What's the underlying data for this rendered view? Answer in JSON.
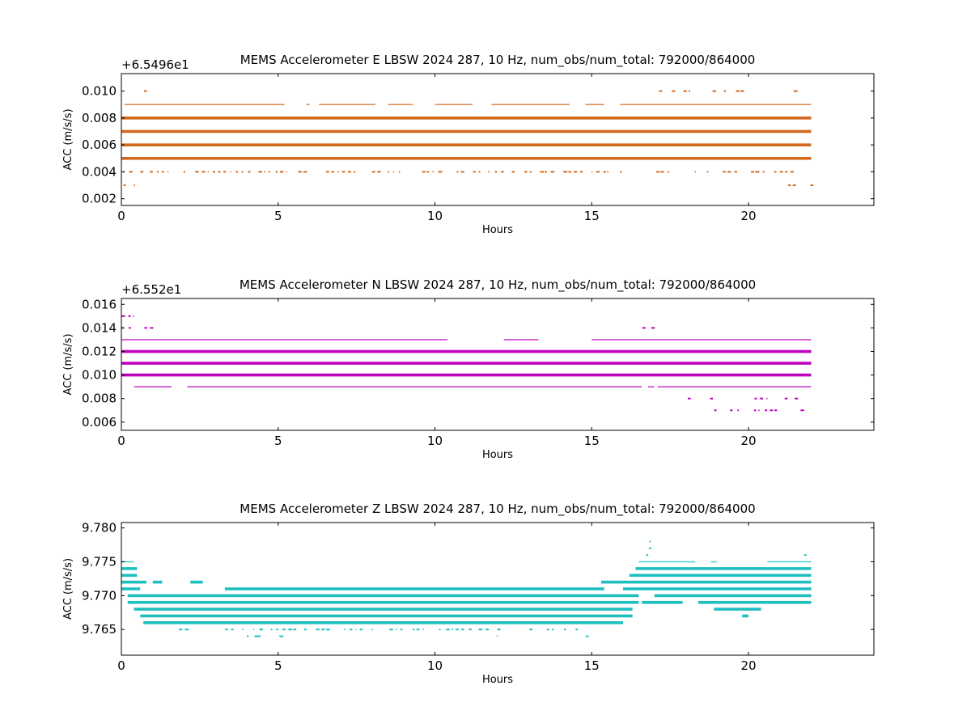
{
  "chart_data": [
    {
      "type": "scatter",
      "title": "MEMS Accelerometer E LBSW 2024 287, 10 Hz, num_obs/num_total: 792000/864000",
      "xlabel": "Hours",
      "ylabel": "ACC (m/s/s)",
      "offset_text": "+6.5496e1",
      "color": "#d2691e",
      "xlim": [
        0,
        24
      ],
      "ylim": [
        0.0015,
        0.0113
      ],
      "xticks": [
        0,
        5,
        10,
        15,
        20
      ],
      "xtick_labels": [
        "0",
        "5",
        "10",
        "15",
        "20"
      ],
      "yticks": [
        0.002,
        0.004,
        0.006,
        0.008,
        0.01
      ],
      "ytick_labels": [
        "0.002",
        "0.004",
        "0.006",
        "0.008",
        "0.010"
      ],
      "series": [
        {
          "y": 0.01,
          "segments": [
            [
              0.7,
              0.8
            ],
            [
              17.1,
              17.7
            ],
            [
              17.9,
              18.2
            ],
            [
              18.6,
              19.9
            ],
            [
              20.5,
              21.1
            ],
            [
              21.4,
              21.6
            ]
          ],
          "density": "sparse"
        },
        {
          "y": 0.009,
          "segments": [
            [
              0.1,
              5.2
            ],
            [
              5.9,
              6.0
            ],
            [
              6.3,
              8.1
            ],
            [
              8.5,
              9.3
            ],
            [
              10.0,
              11.2
            ],
            [
              11.8,
              14.3
            ],
            [
              14.8,
              15.4
            ],
            [
              15.9,
              22.0
            ]
          ],
          "density": "sparse-to-dense"
        },
        {
          "y": 0.008,
          "segments": [
            [
              0.0,
              22.0
            ]
          ],
          "density": "dense"
        },
        {
          "y": 0.007,
          "segments": [
            [
              0.0,
              22.0
            ]
          ],
          "density": "dense"
        },
        {
          "y": 0.006,
          "segments": [
            [
              0.0,
              22.0
            ]
          ],
          "density": "dense"
        },
        {
          "y": 0.005,
          "segments": [
            [
              0.0,
              22.0
            ]
          ],
          "density": "dense"
        },
        {
          "y": 0.004,
          "segments": [
            [
              0.0,
              16.2
            ],
            [
              17.0,
              22.0
            ]
          ],
          "density": "sparse"
        },
        {
          "y": 0.003,
          "segments": [
            [
              0.0,
              0.1
            ],
            [
              0.4,
              0.5
            ],
            [
              21.2,
              21.5
            ],
            [
              21.9,
              22.0
            ]
          ],
          "density": "sparse"
        }
      ]
    },
    {
      "type": "scatter",
      "title": "MEMS Accelerometer N LBSW 2024 287, 10 Hz, num_obs/num_total: 792000/864000",
      "xlabel": "Hours",
      "ylabel": "ACC (m/s/s)",
      "offset_text": "+6.552e1",
      "color": "#bf00bf",
      "xlim": [
        0,
        24
      ],
      "ylim": [
        0.0053,
        0.0165
      ],
      "xticks": [
        0,
        5,
        10,
        15,
        20
      ],
      "xtick_labels": [
        "0",
        "5",
        "10",
        "15",
        "20"
      ],
      "yticks": [
        0.006,
        0.008,
        0.01,
        0.012,
        0.014,
        0.016
      ],
      "ytick_labels": [
        "0.006",
        "0.008",
        "0.010",
        "0.012",
        "0.014",
        "0.016"
      ],
      "series": [
        {
          "y": 0.015,
          "segments": [
            [
              0.0,
              0.5
            ]
          ],
          "density": "sparse"
        },
        {
          "y": 0.014,
          "segments": [
            [
              0.0,
              0.6
            ],
            [
              0.7,
              1.0
            ],
            [
              16.6,
              16.8
            ],
            [
              16.9,
              17.0
            ]
          ],
          "density": "sparse"
        },
        {
          "y": 0.013,
          "segments": [
            [
              0.0,
              10.4
            ],
            [
              12.2,
              13.3
            ],
            [
              15.0,
              22.0
            ]
          ],
          "density": "sparse-to-dense"
        },
        {
          "y": 0.012,
          "segments": [
            [
              0.0,
              22.0
            ]
          ],
          "density": "dense"
        },
        {
          "y": 0.011,
          "segments": [
            [
              0.0,
              22.0
            ]
          ],
          "density": "dense"
        },
        {
          "y": 0.01,
          "segments": [
            [
              0.0,
              22.0
            ]
          ],
          "density": "dense"
        },
        {
          "y": 0.009,
          "segments": [
            [
              0.4,
              1.6
            ],
            [
              2.1,
              16.6
            ],
            [
              16.8,
              17.0
            ],
            [
              17.1,
              22.0
            ]
          ],
          "density": "sparse-to-dense"
        },
        {
          "y": 0.008,
          "segments": [
            [
              18.0,
              22.0
            ]
          ],
          "density": "sparse"
        },
        {
          "y": 0.007,
          "segments": [
            [
              18.7,
              21.0
            ],
            [
              21.6,
              21.7
            ]
          ],
          "density": "sparse"
        }
      ]
    },
    {
      "type": "scatter",
      "title": "MEMS Accelerometer Z LBSW 2024 287, 10 Hz, num_obs/num_total: 792000/864000",
      "xlabel": "Hours",
      "ylabel": "ACC (m/s/s)",
      "offset_text": "",
      "color": "#1fbfbf",
      "xlim": [
        0,
        24
      ],
      "ylim": [
        9.7612,
        9.7808
      ],
      "xticks": [
        0,
        5,
        10,
        15,
        20
      ],
      "xtick_labels": [
        "0",
        "5",
        "10",
        "15",
        "20"
      ],
      "yticks": [
        9.765,
        9.77,
        9.775,
        9.78
      ],
      "ytick_labels": [
        "9.765",
        "9.770",
        "9.775",
        "9.780"
      ],
      "series": [
        {
          "y": 9.778,
          "segments": [
            [
              16.8,
              16.9
            ]
          ],
          "density": "sparse"
        },
        {
          "y": 9.777,
          "segments": [
            [
              16.8,
              16.9
            ]
          ],
          "density": "sparse"
        },
        {
          "y": 9.776,
          "segments": [
            [
              16.7,
              16.9
            ],
            [
              21.7,
              21.8
            ]
          ],
          "density": "sparse"
        },
        {
          "y": 9.775,
          "segments": [
            [
              0.0,
              0.4
            ],
            [
              16.5,
              18.3
            ],
            [
              18.8,
              19.0
            ],
            [
              20.6,
              22.0
            ]
          ],
          "density": "sparse-to-dense"
        },
        {
          "y": 9.774,
          "segments": [
            [
              0.0,
              0.5
            ],
            [
              16.4,
              22.0
            ]
          ],
          "density": "dense"
        },
        {
          "y": 9.773,
          "segments": [
            [
              0.0,
              0.5
            ],
            [
              16.2,
              22.0
            ]
          ],
          "density": "dense"
        },
        {
          "y": 9.772,
          "segments": [
            [
              0.0,
              0.8
            ],
            [
              1.0,
              1.3
            ],
            [
              2.2,
              2.6
            ],
            [
              15.3,
              22.0
            ]
          ],
          "density": "dense"
        },
        {
          "y": 9.771,
          "segments": [
            [
              0.0,
              0.6
            ],
            [
              3.3,
              15.4
            ],
            [
              16.0,
              22.0
            ]
          ],
          "density": "dense"
        },
        {
          "y": 9.77,
          "segments": [
            [
              0.2,
              16.5
            ],
            [
              17.0,
              22.0
            ]
          ],
          "density": "dense"
        },
        {
          "y": 9.769,
          "segments": [
            [
              0.2,
              16.5
            ],
            [
              16.6,
              17.9
            ],
            [
              18.4,
              22.0
            ]
          ],
          "density": "dense"
        },
        {
          "y": 9.768,
          "segments": [
            [
              0.4,
              16.3
            ],
            [
              18.9,
              20.4
            ]
          ],
          "density": "dense"
        },
        {
          "y": 9.767,
          "segments": [
            [
              0.6,
              16.3
            ],
            [
              19.8,
              20.0
            ]
          ],
          "density": "dense"
        },
        {
          "y": 9.766,
          "segments": [
            [
              0.7,
              16.0
            ]
          ],
          "density": "dense"
        },
        {
          "y": 9.765,
          "segments": [
            [
              1.8,
              2.1
            ],
            [
              3.3,
              14.6
            ]
          ],
          "density": "sparse"
        },
        {
          "y": 9.764,
          "segments": [
            [
              4.0,
              4.5
            ],
            [
              5.0,
              5.1
            ],
            [
              11.9,
              12.0
            ],
            [
              14.8,
              14.9
            ]
          ],
          "density": "sparse"
        }
      ]
    }
  ]
}
